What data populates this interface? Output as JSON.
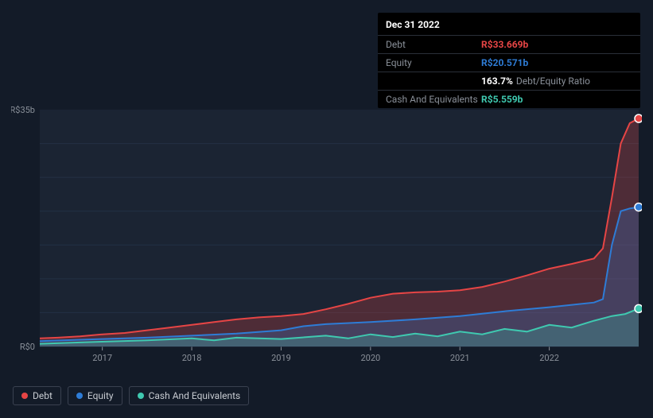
{
  "tooltip": {
    "date": "Dec 31 2022",
    "rows": [
      {
        "label": "Debt",
        "value": "R$33.669b",
        "color": "#e64545"
      },
      {
        "label": "Equity",
        "value": "R$20.571b",
        "color": "#2e7cd6"
      },
      {
        "label": "",
        "value": "163.7%",
        "extra": "Debt/Equity Ratio",
        "color": "#ffffff"
      },
      {
        "label": "Cash And Equivalents",
        "value": "R$5.559b",
        "color": "#3fc9b0"
      }
    ]
  },
  "chart": {
    "type": "area",
    "background_color": "#131b28",
    "plot_background": "#1b2433",
    "grid_color": "#233044",
    "axis_text_color": "#8a9099",
    "axis_fontsize": 11,
    "ylim": [
      0,
      35
    ],
    "ylabels": [
      {
        "v": 0,
        "text": "R$0"
      },
      {
        "v": 35,
        "text": "R$35b"
      }
    ],
    "xlabels": [
      "2017",
      "2018",
      "2019",
      "2020",
      "2021",
      "2022"
    ],
    "x_domain": [
      2016.3,
      2023.0
    ],
    "series": [
      {
        "name": "Debt",
        "color": "#e64545",
        "fill_opacity": 0.25,
        "line_width": 2,
        "marker": {
          "shape": "circle",
          "size": 5,
          "fill": "#e64545"
        },
        "points": [
          [
            2016.3,
            1.2
          ],
          [
            2016.5,
            1.3
          ],
          [
            2016.75,
            1.5
          ],
          [
            2017.0,
            1.8
          ],
          [
            2017.25,
            2.0
          ],
          [
            2017.5,
            2.4
          ],
          [
            2017.75,
            2.8
          ],
          [
            2018.0,
            3.2
          ],
          [
            2018.25,
            3.6
          ],
          [
            2018.5,
            4.0
          ],
          [
            2018.75,
            4.3
          ],
          [
            2019.0,
            4.5
          ],
          [
            2019.25,
            4.8
          ],
          [
            2019.5,
            5.5
          ],
          [
            2019.75,
            6.3
          ],
          [
            2020.0,
            7.2
          ],
          [
            2020.25,
            7.8
          ],
          [
            2020.5,
            8.0
          ],
          [
            2020.75,
            8.1
          ],
          [
            2021.0,
            8.3
          ],
          [
            2021.25,
            8.8
          ],
          [
            2021.5,
            9.6
          ],
          [
            2021.75,
            10.5
          ],
          [
            2022.0,
            11.5
          ],
          [
            2022.25,
            12.2
          ],
          [
            2022.5,
            13.0
          ],
          [
            2022.6,
            14.5
          ],
          [
            2022.7,
            22.0
          ],
          [
            2022.8,
            30.0
          ],
          [
            2022.9,
            33.0
          ],
          [
            2023.0,
            33.7
          ]
        ]
      },
      {
        "name": "Equity",
        "color": "#2e7cd6",
        "fill_opacity": 0.25,
        "line_width": 2,
        "marker": {
          "shape": "circle",
          "size": 5,
          "fill": "#2e7cd6"
        },
        "points": [
          [
            2016.3,
            0.8
          ],
          [
            2016.75,
            1.0
          ],
          [
            2017.0,
            1.1
          ],
          [
            2017.5,
            1.3
          ],
          [
            2018.0,
            1.6
          ],
          [
            2018.5,
            1.9
          ],
          [
            2019.0,
            2.4
          ],
          [
            2019.25,
            3.0
          ],
          [
            2019.5,
            3.3
          ],
          [
            2020.0,
            3.6
          ],
          [
            2020.5,
            4.0
          ],
          [
            2021.0,
            4.5
          ],
          [
            2021.5,
            5.2
          ],
          [
            2022.0,
            5.8
          ],
          [
            2022.5,
            6.5
          ],
          [
            2022.6,
            7.0
          ],
          [
            2022.7,
            15.0
          ],
          [
            2022.8,
            20.0
          ],
          [
            2022.9,
            20.4
          ],
          [
            2023.0,
            20.6
          ]
        ]
      },
      {
        "name": "Cash And Equivalents",
        "color": "#3fc9b0",
        "fill_opacity": 0.25,
        "line_width": 2,
        "marker": {
          "shape": "circle",
          "size": 5,
          "fill": "#3fc9b0"
        },
        "points": [
          [
            2016.3,
            0.4
          ],
          [
            2016.75,
            0.6
          ],
          [
            2017.0,
            0.7
          ],
          [
            2017.5,
            0.9
          ],
          [
            2018.0,
            1.2
          ],
          [
            2018.25,
            0.9
          ],
          [
            2018.5,
            1.3
          ],
          [
            2019.0,
            1.1
          ],
          [
            2019.5,
            1.6
          ],
          [
            2019.75,
            1.2
          ],
          [
            2020.0,
            1.8
          ],
          [
            2020.25,
            1.4
          ],
          [
            2020.5,
            1.9
          ],
          [
            2020.75,
            1.5
          ],
          [
            2021.0,
            2.2
          ],
          [
            2021.25,
            1.8
          ],
          [
            2021.5,
            2.6
          ],
          [
            2021.75,
            2.2
          ],
          [
            2022.0,
            3.2
          ],
          [
            2022.25,
            2.8
          ],
          [
            2022.5,
            3.8
          ],
          [
            2022.7,
            4.5
          ],
          [
            2022.85,
            4.8
          ],
          [
            2023.0,
            5.6
          ]
        ]
      }
    ]
  },
  "legend": {
    "items": [
      {
        "label": "Debt",
        "color": "#e64545"
      },
      {
        "label": "Equity",
        "color": "#2e7cd6"
      },
      {
        "label": "Cash And Equivalents",
        "color": "#3fc9b0"
      }
    ]
  }
}
